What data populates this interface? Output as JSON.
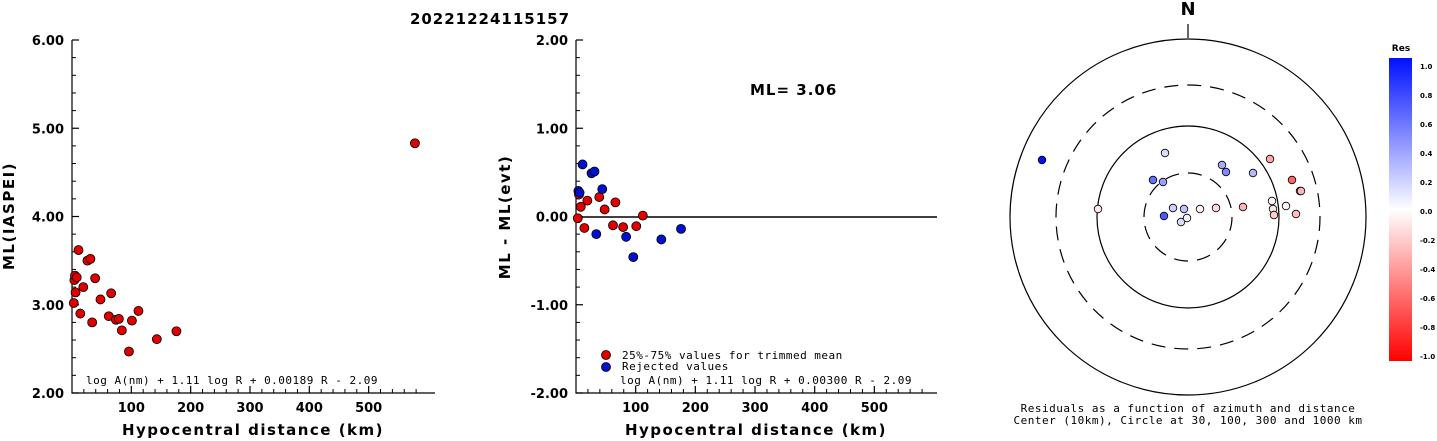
{
  "title": "20221224115157",
  "chart_data": [
    {
      "type": "scatter",
      "ylabel": "ML(IASPEI)",
      "xlabel": "Hypocentral distance (km)",
      "xlim": [
        0,
        600
      ],
      "ylim": [
        2.0,
        6.0
      ],
      "x_ticks": [
        "100",
        "200",
        "300",
        "400",
        "500"
      ],
      "y_ticks": [
        "2.00",
        "3.00",
        "4.00",
        "5.00",
        "6.00"
      ],
      "formula": "log A(nm) + 1.11 log R + 0.00189 R - 2.09",
      "series": [
        {
          "color": "#e00000",
          "points": [
            [
              3,
              3.02
            ],
            [
              4,
              3.28
            ],
            [
              5,
              3.33
            ],
            [
              6,
              3.14
            ],
            [
              8,
              3.31
            ],
            [
              11,
              3.62
            ],
            [
              14,
              2.9
            ],
            [
              19,
              3.2
            ],
            [
              26,
              3.5
            ],
            [
              31,
              3.52
            ],
            [
              34,
              2.8
            ],
            [
              39,
              3.3
            ],
            [
              48,
              3.06
            ],
            [
              62,
              2.87
            ],
            [
              66,
              3.13
            ],
            [
              74,
              2.83
            ],
            [
              79,
              2.84
            ],
            [
              84,
              2.71
            ],
            [
              96,
              2.47
            ],
            [
              101,
              2.82
            ],
            [
              112,
              2.93
            ],
            [
              143,
              2.61
            ],
            [
              176,
              2.7
            ],
            [
              578,
              4.83
            ]
          ]
        }
      ]
    },
    {
      "type": "scatter",
      "ylabel": "ML - ML(evt)",
      "xlabel": "Hypocentral distance (km)",
      "xlim": [
        0,
        600
      ],
      "ylim": [
        -2.0,
        2.0
      ],
      "x_ticks": [
        "100",
        "200",
        "300",
        "400",
        "500"
      ],
      "y_ticks": [
        "-2.00",
        "-1.00",
        "0.00",
        "1.00",
        "2.00"
      ],
      "annotation": "ML= 3.06",
      "formula": "log A(nm) + 1.11 log R + 0.00300 R - 2.09",
      "legend": [
        "25%-75% values for trimmed mean",
        "Rejected values"
      ],
      "series": [
        {
          "name": "25%-75% values for trimmed mean",
          "color": "#e00000",
          "points": [
            [
              3,
              -0.02
            ],
            [
              5,
              0.25
            ],
            [
              8,
              0.11
            ],
            [
              14,
              -0.13
            ],
            [
              19,
              0.18
            ],
            [
              39,
              0.22
            ],
            [
              48,
              0.08
            ],
            [
              62,
              -0.1
            ],
            [
              66,
              0.16
            ],
            [
              79,
              -0.12
            ],
            [
              101,
              -0.11
            ],
            [
              112,
              0.01
            ]
          ]
        },
        {
          "name": "Rejected values",
          "color": "#0010d0",
          "points": [
            [
              4,
              0.29
            ],
            [
              6,
              0.27
            ],
            [
              11,
              0.59
            ],
            [
              26,
              0.49
            ],
            [
              31,
              0.51
            ],
            [
              34,
              -0.2
            ],
            [
              44,
              0.31
            ],
            [
              84,
              -0.23
            ],
            [
              96,
              -0.46
            ],
            [
              143,
              -0.26
            ],
            [
              176,
              -0.14
            ]
          ]
        }
      ]
    },
    {
      "type": "polar-scatter",
      "north_label": "N",
      "caption1": "Residuals as a function of azimuth and distance",
      "caption2": "Center (10km), Circle at 30, 100, 300 and 1000 km",
      "colorbar_title": "Res",
      "colorbar_ticks": [
        "1.0",
        "0.8",
        "0.6",
        "0.4",
        "0.2",
        "0.0",
        "-0.2",
        "-0.4",
        "-0.6",
        "-0.8",
        "-1.0"
      ],
      "points": [
        {
          "x": -23,
          "y": -64,
          "res": 0.15
        },
        {
          "x": -25,
          "y": -35,
          "res": 0.4
        },
        {
          "x": -35,
          "y": -37,
          "res": 0.6
        },
        {
          "x": 34,
          "y": -52,
          "res": 0.35
        },
        {
          "x": 38,
          "y": -45,
          "res": 0.5
        },
        {
          "x": 65,
          "y": -44,
          "res": 0.3
        },
        {
          "x": 82,
          "y": -58,
          "res": -0.35
        },
        {
          "x": 104,
          "y": -37,
          "res": -0.6
        },
        {
          "x": 112,
          "y": -26,
          "res": -0.3
        },
        {
          "x": -15,
          "y": -9,
          "res": 0.2
        },
        {
          "x": -4,
          "y": -8,
          "res": 0.25
        },
        {
          "x": -24,
          "y": -1,
          "res": 0.7
        },
        {
          "x": 12,
          "y": -8,
          "res": -0.05
        },
        {
          "x": -7,
          "y": 5,
          "res": 0.15
        },
        {
          "x": -1,
          "y": 1,
          "res": 0.05
        },
        {
          "x": 28,
          "y": -9,
          "res": -0.15
        },
        {
          "x": 55,
          "y": -10,
          "res": -0.3
        },
        {
          "x": 84,
          "y": -16,
          "res": -0.05
        },
        {
          "x": 85,
          "y": -8,
          "res": -0.1
        },
        {
          "x": 86,
          "y": -2,
          "res": -0.2
        },
        {
          "x": 98,
          "y": -11,
          "res": -0.05
        },
        {
          "x": 108,
          "y": -3,
          "res": -0.25
        },
        {
          "x": 113,
          "y": -26,
          "res": -0.3
        },
        {
          "x": -90,
          "y": -8,
          "res": -0.1
        },
        {
          "x": -146,
          "y": -57,
          "res": 1.0
        }
      ]
    }
  ]
}
